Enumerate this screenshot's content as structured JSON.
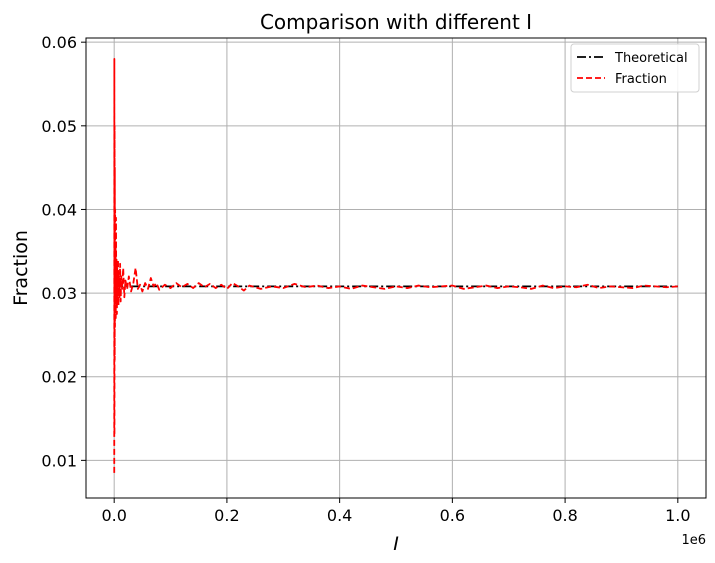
{
  "chart_data": {
    "type": "line",
    "title": "Comparison with different I",
    "xlabel": "I",
    "ylabel": "Fraction",
    "x_offset_label": "1e6",
    "xlim": [
      -50000,
      1050000
    ],
    "ylim": [
      0.0055,
      0.0605
    ],
    "x_ticks": [
      0,
      200000,
      400000,
      600000,
      800000,
      1000000
    ],
    "x_tick_labels": [
      "0.0",
      "0.2",
      "0.4",
      "0.6",
      "0.8",
      "1.0"
    ],
    "y_ticks": [
      0.01,
      0.02,
      0.03,
      0.04,
      0.05,
      0.06
    ],
    "y_tick_labels": [
      "0.01",
      "0.02",
      "0.03",
      "0.04",
      "0.05",
      "0.06"
    ],
    "grid": true,
    "legend_position": "top-right",
    "series": [
      {
        "name": "Theoretical",
        "color": "#000000",
        "style": "dashdot",
        "x": [
          0,
          1000000
        ],
        "y": [
          0.0308,
          0.0308
        ]
      },
      {
        "name": "Fraction",
        "color": "#ff0000",
        "style": "dashed",
        "x": [
          100,
          300,
          500,
          700,
          900,
          1100,
          1400,
          1700,
          2000,
          2400,
          2800,
          3200,
          3700,
          4200,
          4800,
          5400,
          6000,
          6800,
          7600,
          8500,
          9500,
          10500,
          11500,
          12500,
          14000,
          16000,
          18000,
          20000,
          23000,
          26000,
          30000,
          34000,
          38000,
          42000,
          46000,
          50000,
          55000,
          60000,
          65000,
          70000,
          75000,
          80000,
          90000,
          100000,
          110000,
          120000,
          130000,
          140000,
          150000,
          160000,
          170000,
          180000,
          190000,
          200000,
          210000,
          220000,
          230000,
          240000,
          250000,
          260000,
          280000,
          300000,
          320000,
          340000,
          360000,
          380000,
          400000,
          420000,
          440000,
          460000,
          480000,
          500000,
          520000,
          540000,
          560000,
          580000,
          600000,
          620000,
          640000,
          660000,
          680000,
          700000,
          720000,
          740000,
          760000,
          780000,
          800000,
          820000,
          840000,
          860000,
          880000,
          900000,
          920000,
          940000,
          960000,
          980000,
          1000000
        ],
        "y": [
          0.0085,
          0.058,
          0.013,
          0.05,
          0.022,
          0.045,
          0.026,
          0.04,
          0.028,
          0.036,
          0.027,
          0.039,
          0.029,
          0.034,
          0.0275,
          0.033,
          0.029,
          0.034,
          0.0285,
          0.032,
          0.0295,
          0.0335,
          0.029,
          0.032,
          0.0305,
          0.033,
          0.0295,
          0.0315,
          0.0305,
          0.032,
          0.0302,
          0.0312,
          0.033,
          0.0305,
          0.031,
          0.0302,
          0.0312,
          0.0305,
          0.0318,
          0.0308,
          0.0312,
          0.0304,
          0.031,
          0.0306,
          0.0312,
          0.0307,
          0.0311,
          0.0306,
          0.0312,
          0.0307,
          0.0311,
          0.0306,
          0.031,
          0.0305,
          0.0312,
          0.0308,
          0.0303,
          0.0309,
          0.0307,
          0.0305,
          0.0308,
          0.0306,
          0.0311,
          0.0307,
          0.0309,
          0.0306,
          0.0308,
          0.0305,
          0.0309,
          0.0307,
          0.0305,
          0.0308,
          0.0306,
          0.0309,
          0.0307,
          0.0308,
          0.0309,
          0.0305,
          0.0307,
          0.0309,
          0.0306,
          0.0308,
          0.0307,
          0.0305,
          0.0309,
          0.0306,
          0.0308,
          0.0307,
          0.031,
          0.0306,
          0.0308,
          0.0307,
          0.0306,
          0.0309,
          0.0308,
          0.0307,
          0.0308
        ]
      }
    ]
  }
}
